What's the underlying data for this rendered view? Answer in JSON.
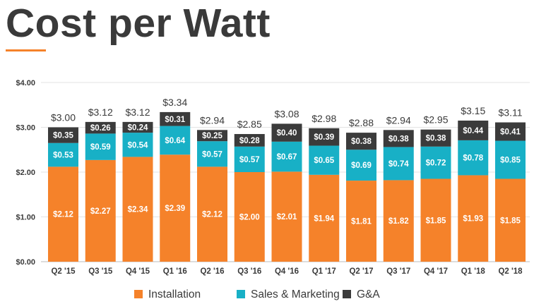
{
  "chart_data": {
    "type": "bar",
    "stacked": true,
    "title": "Cost per Watt",
    "categories": [
      "Q2 '15",
      "Q3 '15",
      "Q4 '15",
      "Q1 '16",
      "Q2 '16",
      "Q3 '16",
      "Q4 '16",
      "Q1 '17",
      "Q2 '17",
      "Q3 '17",
      "Q4 '17",
      "Q1 '18",
      "Q2 '18"
    ],
    "series": [
      {
        "name": "Installation",
        "color": "#f5822a",
        "values": [
          2.12,
          2.27,
          2.34,
          2.39,
          2.12,
          2.0,
          2.01,
          1.94,
          1.81,
          1.82,
          1.85,
          1.93,
          1.85
        ]
      },
      {
        "name": "Sales & Marketing",
        "color": "#18b0c6",
        "values": [
          0.53,
          0.59,
          0.54,
          0.64,
          0.57,
          0.57,
          0.67,
          0.65,
          0.69,
          0.74,
          0.72,
          0.78,
          0.85
        ]
      },
      {
        "name": "G&A",
        "color": "#3b3b3b",
        "values": [
          0.35,
          0.26,
          0.24,
          0.31,
          0.25,
          0.28,
          0.4,
          0.39,
          0.38,
          0.38,
          0.38,
          0.44,
          0.41
        ]
      }
    ],
    "totals": [
      3.0,
      3.12,
      3.12,
      3.34,
      2.94,
      2.85,
      3.08,
      2.98,
      2.88,
      2.94,
      2.95,
      3.15,
      3.11
    ],
    "yticks": [
      "$0.00",
      "$1.00",
      "$2.00",
      "$3.00",
      "$4.00"
    ],
    "ylim": [
      0,
      4
    ],
    "grid": true,
    "legend": "bottom"
  }
}
